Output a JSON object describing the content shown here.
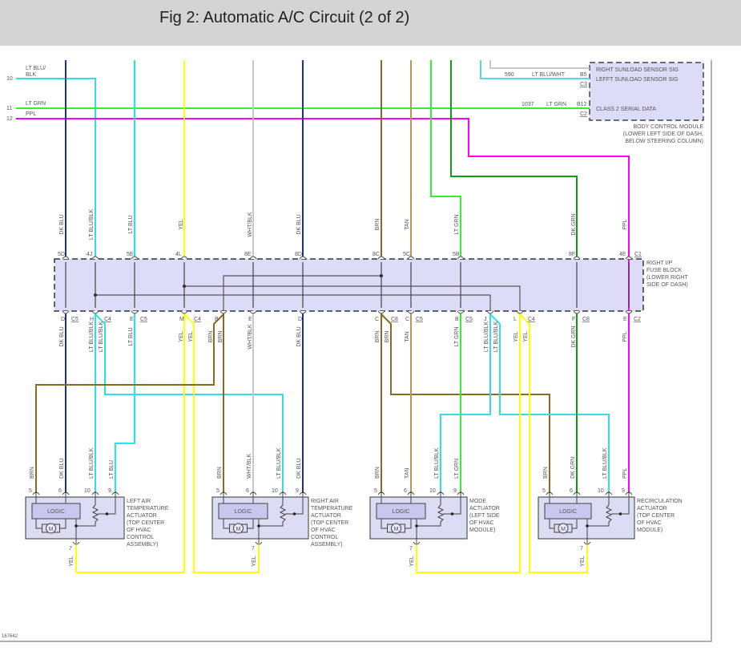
{
  "header": {
    "title": "Fig 2: Automatic A/C Circuit (2 of 2)"
  },
  "left_wires": [
    {
      "num": "10",
      "label_lines": [
        "LT BLU/",
        "BLK"
      ]
    },
    {
      "num": "11",
      "label": "LT GRN"
    },
    {
      "num": "12",
      "label": "PPL"
    }
  ],
  "bcm": {
    "pins": [
      "RIGHT SUNLOAD SENSOR SIG",
      "LEFFT SUNLOAD SENSOR SIG",
      "CLASS 2 SERIAL DATA"
    ],
    "sunload_circuit": "590",
    "sunload_wire": "LT BLU/WHT",
    "sunload_pin": "B5",
    "sunload_connector": "C3",
    "serial_circuit": "1037",
    "serial_wire": "LT GRN",
    "serial_pin": "B12",
    "serial_connector": "C2",
    "caption_lines": [
      "BODY CONTROL MODULE",
      "(LOWER LEFT SIDE OF DASH,",
      "BELOW STEERING COLUMN)"
    ]
  },
  "fuse_block": {
    "label_lines": [
      "RIGHT I/P",
      "FUSE BLOCK",
      "(LOWER RIGHT",
      "SIDE OF DASH)"
    ],
    "top_connector": "C1",
    "top_pins": [
      "5D",
      "4J",
      "5E",
      "4L",
      "8E",
      "8D",
      "8C",
      "5C",
      "5B",
      "8F",
      "4E"
    ],
    "bottom_pins": [
      "D",
      "C5",
      "H",
      "C4",
      "E",
      "C5",
      "M",
      "C4",
      "B",
      "E",
      "D",
      "C",
      "C8",
      "C",
      "C5",
      "B",
      "C5",
      "J",
      "L",
      "C4",
      "F",
      "C8",
      "E",
      "C2"
    ]
  },
  "wire_labels": {
    "top": [
      "DK BLU",
      "LT BLU/BLK",
      "LT BLU",
      "YEL",
      "WHT/BLK",
      "DK BLU",
      "BRN",
      "TAN",
      "LT GRN",
      "DK GRN",
      "PPL"
    ],
    "bottom": [
      "DK BLU",
      "LT BLU/BLK",
      "LT BLU/BLK",
      "LT BLU",
      "YEL",
      "YEL",
      "BRN",
      "BRN",
      "WHT/BLK",
      "DK BLU",
      "BRN",
      "BRN",
      "TAN",
      "LT GRN",
      "LT BLU/BLK",
      "LT BLU/BLK",
      "YEL",
      "YEL",
      "DK GRN",
      "PPL"
    ]
  },
  "actuators": [
    {
      "name_lines": [
        "LEFT AIR",
        "TEMPERATURE",
        "ACTUATOR",
        "(TOP CENTER",
        "OF HVAC",
        "CONTROL",
        "ASSEMBLY)"
      ],
      "wires": [
        "BRN",
        "DK BLU",
        "LT BLU/BLK",
        "LT BLU"
      ],
      "pins": [
        "5",
        "6",
        "10",
        "9"
      ],
      "out_pin": "7",
      "out_wire": "YEL",
      "logic": "LOGIC",
      "motor": "M"
    },
    {
      "name_lines": [
        "RIGHT AIR",
        "TEMPERATURE",
        "ACTUATOR",
        "(TOP CENTER",
        "OF HVAC",
        "CONTROL",
        "ASSEMBLY)"
      ],
      "wires": [
        "BRN",
        "WHT/BLK",
        "LT BLU/BLK",
        "DK BLU"
      ],
      "pins": [
        "5",
        "6",
        "10",
        "9"
      ],
      "out_pin": "7",
      "out_wire": "YEL",
      "logic": "LOGIC",
      "motor": "M"
    },
    {
      "name_lines": [
        "MODE",
        "ACTUATOR",
        "(LEFT SIDE",
        "OF HVAC",
        "MODULE)"
      ],
      "wires": [
        "BRN",
        "TAN",
        "LT BLU/BLK",
        "LT GRN"
      ],
      "pins": [
        "5",
        "6",
        "10",
        "9"
      ],
      "out_pin": "7",
      "out_wire": "YEL",
      "logic": "LOGIC",
      "motor": "M"
    },
    {
      "name_lines": [
        "RECIRCULATION",
        "ACTUATOR",
        "(TOP CENTER",
        "OF HVAC",
        "MODULE)"
      ],
      "wires": [
        "BRN",
        "DK GRN",
        "LT BLU/BLK",
        "PPL"
      ],
      "pins": [
        "5",
        "6",
        "10",
        "9"
      ],
      "out_pin": "7",
      "out_wire": "YEL",
      "logic": "LOGIC",
      "motor": "M"
    }
  ],
  "wire_colors": {
    "DK BLU": "#1c2f9a",
    "LT BLU": "#22e8f0",
    "LT BLU/BLK": "#33dde6",
    "YEL": "#ffff00",
    "WHT/BLK": "#c8c8c8",
    "BRN": "#8a6a1c",
    "TAN": "#b8975a",
    "LT GRN": "#33ee33",
    "DK GRN": "#129a12",
    "PPL": "#ff00ff",
    "LT BLU/WHT": "#55d8e8"
  },
  "footer": {
    "ref": "167642"
  }
}
